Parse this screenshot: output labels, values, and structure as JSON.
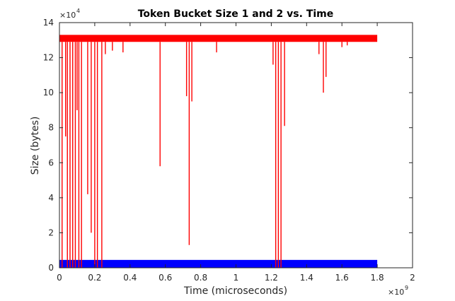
{
  "chart_data": {
    "type": "line",
    "title": "Token Bucket Size 1 and 2 vs. Time",
    "xlabel": "Time (microseconds)",
    "ylabel": "Size (bytes)",
    "xlim": [
      0,
      2
    ],
    "ylim": [
      0,
      14
    ],
    "x_ticks": [
      0,
      0.2,
      0.4,
      0.6,
      0.8,
      1,
      1.2,
      1.4,
      1.6,
      1.8,
      2
    ],
    "y_ticks": [
      0,
      2,
      4,
      6,
      8,
      10,
      12,
      14
    ],
    "x_multiplier": {
      "base": "×10",
      "exponent": "9"
    },
    "y_multiplier": {
      "base": "×10",
      "exponent": "4"
    },
    "grid": false,
    "series": [
      {
        "color": "#0000ff",
        "style": "band",
        "x_range": [
          0,
          1.8
        ],
        "y_range": [
          0,
          0.45
        ]
      },
      {
        "color": "#ff0000",
        "style": "band",
        "x_range": [
          0,
          1.8
        ],
        "y_range": [
          12.9,
          13.3
        ],
        "dips": [
          {
            "x": 0.015,
            "y": 0
          },
          {
            "x": 0.035,
            "y": 7.5
          },
          {
            "x": 0.045,
            "y": 0
          },
          {
            "x": 0.06,
            "y": 0
          },
          {
            "x": 0.075,
            "y": 0
          },
          {
            "x": 0.09,
            "y": 0
          },
          {
            "x": 0.1,
            "y": 9
          },
          {
            "x": 0.11,
            "y": 0
          },
          {
            "x": 0.125,
            "y": 0
          },
          {
            "x": 0.16,
            "y": 4.2
          },
          {
            "x": 0.18,
            "y": 2
          },
          {
            "x": 0.2,
            "y": 0
          },
          {
            "x": 0.215,
            "y": 0
          },
          {
            "x": 0.24,
            "y": 0
          },
          {
            "x": 0.26,
            "y": 12.2
          },
          {
            "x": 0.3,
            "y": 12.4
          },
          {
            "x": 0.36,
            "y": 12.3
          },
          {
            "x": 0.57,
            "y": 5.8
          },
          {
            "x": 0.72,
            "y": 9.8
          },
          {
            "x": 0.735,
            "y": 1.3
          },
          {
            "x": 0.75,
            "y": 9.5
          },
          {
            "x": 0.89,
            "y": 12.3
          },
          {
            "x": 1.21,
            "y": 11.6
          },
          {
            "x": 1.225,
            "y": 0
          },
          {
            "x": 1.24,
            "y": 0
          },
          {
            "x": 1.255,
            "y": 0
          },
          {
            "x": 1.275,
            "y": 8.1
          },
          {
            "x": 1.47,
            "y": 12.2
          },
          {
            "x": 1.495,
            "y": 10
          },
          {
            "x": 1.51,
            "y": 10.9
          },
          {
            "x": 1.6,
            "y": 12.6
          },
          {
            "x": 1.63,
            "y": 12.7
          }
        ]
      }
    ]
  }
}
